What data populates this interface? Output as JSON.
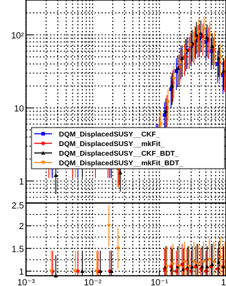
{
  "chart_data": [
    {
      "type": "scatter",
      "panel": "main",
      "x_scale": "log",
      "y_scale": "log",
      "xlim": [
        0.001,
        1
      ],
      "ylim": [
        0.5,
        300
      ],
      "grid": true,
      "ytick_labels": [
        "10²",
        "10",
        "1"
      ],
      "legend": {
        "placement": "center-left",
        "entries": [
          {
            "label": "DQM_DisplacedSUSY__CKF_",
            "color": "#0000ff",
            "marker": "square"
          },
          {
            "label": "DQM_DisplacedSUSY__mkFit_",
            "color": "#ff0000",
            "marker": "circle"
          },
          {
            "label": "DQM_DisplacedSUSY__CKF_BDT_",
            "color": "#000000",
            "marker": "triangle"
          },
          {
            "label": "DQM_DisplacedSUSY__mkFit_BDT_",
            "color": "#ff7f00",
            "marker": "triangle-down"
          }
        ]
      },
      "series": [
        {
          "name": "DQM_DisplacedSUSY__CKF_",
          "color": "#0000ff",
          "x": [
            0.0025,
            0.006,
            0.012,
            0.018,
            0.025,
            0.09,
            0.12,
            0.15,
            0.18,
            0.21,
            0.25,
            0.3,
            0.35,
            0.4,
            0.5,
            0.6,
            0.75,
            0.9
          ],
          "y": [
            2,
            2,
            3,
            2,
            1.6,
            4,
            8,
            18,
            32,
            45,
            58,
            70,
            85,
            90,
            80,
            60,
            40,
            28
          ]
        },
        {
          "name": "DQM_DisplacedSUSY__mkFit_",
          "color": "#ff0000",
          "x": [
            0.0022,
            0.005,
            0.011,
            0.017,
            0.024,
            0.1,
            0.13,
            0.16,
            0.2,
            0.24,
            0.28,
            0.33,
            0.38,
            0.45,
            0.55,
            0.65,
            0.8,
            0.95
          ],
          "y": [
            2,
            2,
            2,
            2,
            1.5,
            5,
            10,
            22,
            36,
            50,
            62,
            74,
            90,
            95,
            85,
            62,
            42,
            30
          ]
        },
        {
          "name": "DQM_DisplacedSUSY__CKF_BDT_",
          "color": "#000000",
          "x": [
            0.0028,
            0.007,
            0.013,
            0.019,
            0.026,
            0.095,
            0.125,
            0.155,
            0.19,
            0.22,
            0.26,
            0.31,
            0.36,
            0.42,
            0.52,
            0.62,
            0.78,
            0.92
          ],
          "y": [
            1.2,
            2,
            3,
            2,
            1.3,
            4,
            9,
            20,
            35,
            48,
            62,
            78,
            100,
            105,
            92,
            70,
            48,
            32
          ]
        },
        {
          "name": "DQM_DisplacedSUSY__mkFit_BDT_",
          "color": "#ff7f00",
          "x": [
            0.0024,
            0.0055,
            0.0115,
            0.0175,
            0.0245,
            0.105,
            0.135,
            0.165,
            0.205,
            0.245,
            0.29,
            0.34,
            0.39,
            0.47,
            0.57,
            0.67,
            0.82,
            0.97
          ],
          "y": [
            2,
            2,
            3,
            3,
            1.5,
            6,
            12,
            25,
            42,
            58,
            72,
            88,
            110,
            120,
            100,
            75,
            50,
            34
          ]
        }
      ]
    },
    {
      "type": "scatter",
      "panel": "ratio",
      "x_scale": "log",
      "xlim": [
        0.001,
        1
      ],
      "ylim": [
        0.9,
        2.5
      ],
      "grid": true,
      "ytick_labels": [
        "2.5",
        "2",
        "1.5",
        "1"
      ],
      "xtick_labels": [
        "10⁻³",
        "10⁻²",
        "10⁻¹",
        "1"
      ],
      "series": [
        {
          "name": "DQM_DisplacedSUSY__mkFit_",
          "color": "#ff0000",
          "x": [
            0.0025,
            0.006,
            0.012,
            0.018,
            0.12,
            0.15,
            0.18,
            0.22,
            0.26,
            0.3,
            0.35,
            0.42,
            0.5,
            0.6,
            0.75,
            0.9
          ],
          "y": [
            1.0,
            1.0,
            1.0,
            1.0,
            1.05,
            1.1,
            1.0,
            1.15,
            1.05,
            1.0,
            1.1,
            1.05,
            1.0,
            1.1,
            1.05,
            1.1
          ]
        },
        {
          "name": "DQM_DisplacedSUSY__CKF_BDT_",
          "color": "#000000",
          "x": [
            0.0028,
            0.007,
            0.013,
            0.019,
            0.125,
            0.155,
            0.19,
            0.23,
            0.27,
            0.31,
            0.37,
            0.44,
            0.52,
            0.62,
            0.78,
            0.92
          ],
          "y": [
            0.9,
            1.0,
            1.0,
            1.0,
            1.1,
            1.05,
            1.1,
            1.05,
            1.1,
            1.1,
            1.15,
            1.1,
            1.1,
            1.15,
            1.2,
            1.1
          ]
        },
        {
          "name": "DQM_DisplacedSUSY__mkFit_BDT_",
          "color": "#ff7f00",
          "x": [
            0.0024,
            0.0055,
            0.0115,
            0.0175,
            0.024,
            0.13,
            0.16,
            0.2,
            0.24,
            0.28,
            0.33,
            0.38,
            0.46,
            0.56,
            0.66,
            0.82,
            0.97
          ],
          "y": [
            1.0,
            1.0,
            1.0,
            2.0,
            1.5,
            1.1,
            1.15,
            1.1,
            1.2,
            1.1,
            1.2,
            1.15,
            1.2,
            1.25,
            1.2,
            1.3,
            1.2
          ]
        }
      ]
    }
  ]
}
